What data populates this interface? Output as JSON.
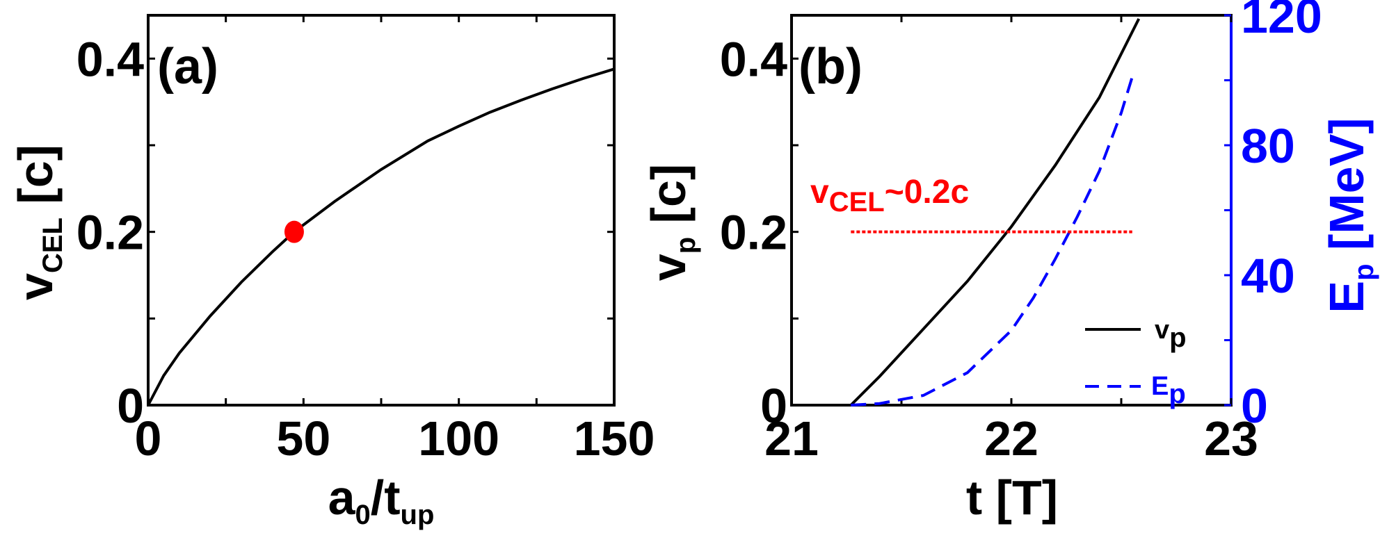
{
  "chart_data": [
    {
      "type": "line",
      "panel_label": "(a)",
      "xlabel": {
        "main": "a",
        "sub1": "0",
        "mid": "/t",
        "sub2": "up"
      },
      "ylabel": {
        "main": "v",
        "sub": "CEL",
        "unit": " [c]"
      },
      "xlim": [
        0,
        150
      ],
      "ylim": [
        0,
        0.45
      ],
      "xticks": [
        0,
        50,
        100,
        150
      ],
      "xtick_labels": [
        "0",
        "50",
        "100",
        "150"
      ],
      "yticks": [
        0,
        0.2,
        0.4
      ],
      "ytick_labels": [
        "0",
        "0.2",
        "0.4"
      ],
      "grid": false,
      "series": [
        {
          "color": "#000000",
          "style": "solid",
          "x": [
            0,
            5,
            10,
            20,
            30,
            40,
            47,
            60,
            75,
            90,
            100,
            110,
            120,
            130,
            140,
            150
          ],
          "y": [
            0,
            0.034,
            0.06,
            0.103,
            0.142,
            0.177,
            0.2,
            0.235,
            0.272,
            0.305,
            0.322,
            0.338,
            0.352,
            0.365,
            0.377,
            0.388
          ]
        }
      ],
      "markers": [
        {
          "x": 47,
          "y": 0.2,
          "color": "#ff0000"
        }
      ]
    },
    {
      "type": "line",
      "panel_label": "(b)",
      "xlabel": "t [T]",
      "ylabel_left": {
        "main": "v",
        "sub": "p",
        "unit": " [c]"
      },
      "ylabel_right": {
        "main": "E",
        "sub": "p",
        "unit": " [MeV]"
      },
      "xlim": [
        21,
        23
      ],
      "ylim_left": [
        0,
        0.45
      ],
      "ylim_right": [
        0,
        120
      ],
      "xticks": [
        21,
        22,
        23
      ],
      "xtick_labels": [
        "21",
        "22",
        "23"
      ],
      "yticks_left": [
        0,
        0.2,
        0.4
      ],
      "ytick_labels_left": [
        "0",
        "0.2",
        "0.4"
      ],
      "yticks_right": [
        0,
        40,
        80,
        120
      ],
      "ytick_labels_right": [
        "0",
        "40",
        "80",
        "120"
      ],
      "grid": false,
      "annotation": {
        "main": "v",
        "sub": "CEL",
        "rest": "~0.2c",
        "y": 0.2,
        "x_range": [
          21.27,
          22.55
        ],
        "color": "#ff0000"
      },
      "series": [
        {
          "name": "v_p",
          "legend_main": "v",
          "legend_sub": "p",
          "axis": "left",
          "color": "#000000",
          "style": "solid",
          "x": [
            21.27,
            21.4,
            21.6,
            21.8,
            22.0,
            22.2,
            22.4,
            22.58
          ],
          "y": [
            0,
            0.033,
            0.088,
            0.143,
            0.206,
            0.277,
            0.355,
            0.446
          ]
        },
        {
          "name": "E_p",
          "legend_main": "E",
          "legend_sub": "p",
          "axis": "right",
          "color": "#0000ff",
          "style": "dashed",
          "x": [
            21.27,
            21.4,
            21.6,
            21.8,
            22.0,
            22.1,
            22.2,
            22.3,
            22.4,
            22.5,
            22.55
          ],
          "y": [
            0,
            0.5,
            3,
            10,
            23,
            33,
            45,
            58,
            72,
            90,
            101
          ]
        }
      ],
      "legend_position": "bottom-right"
    }
  ],
  "colors": {
    "axis": "#000000",
    "right_axis": "#0000ff",
    "marker": "#ff0000",
    "annotation": "#ff0000"
  }
}
